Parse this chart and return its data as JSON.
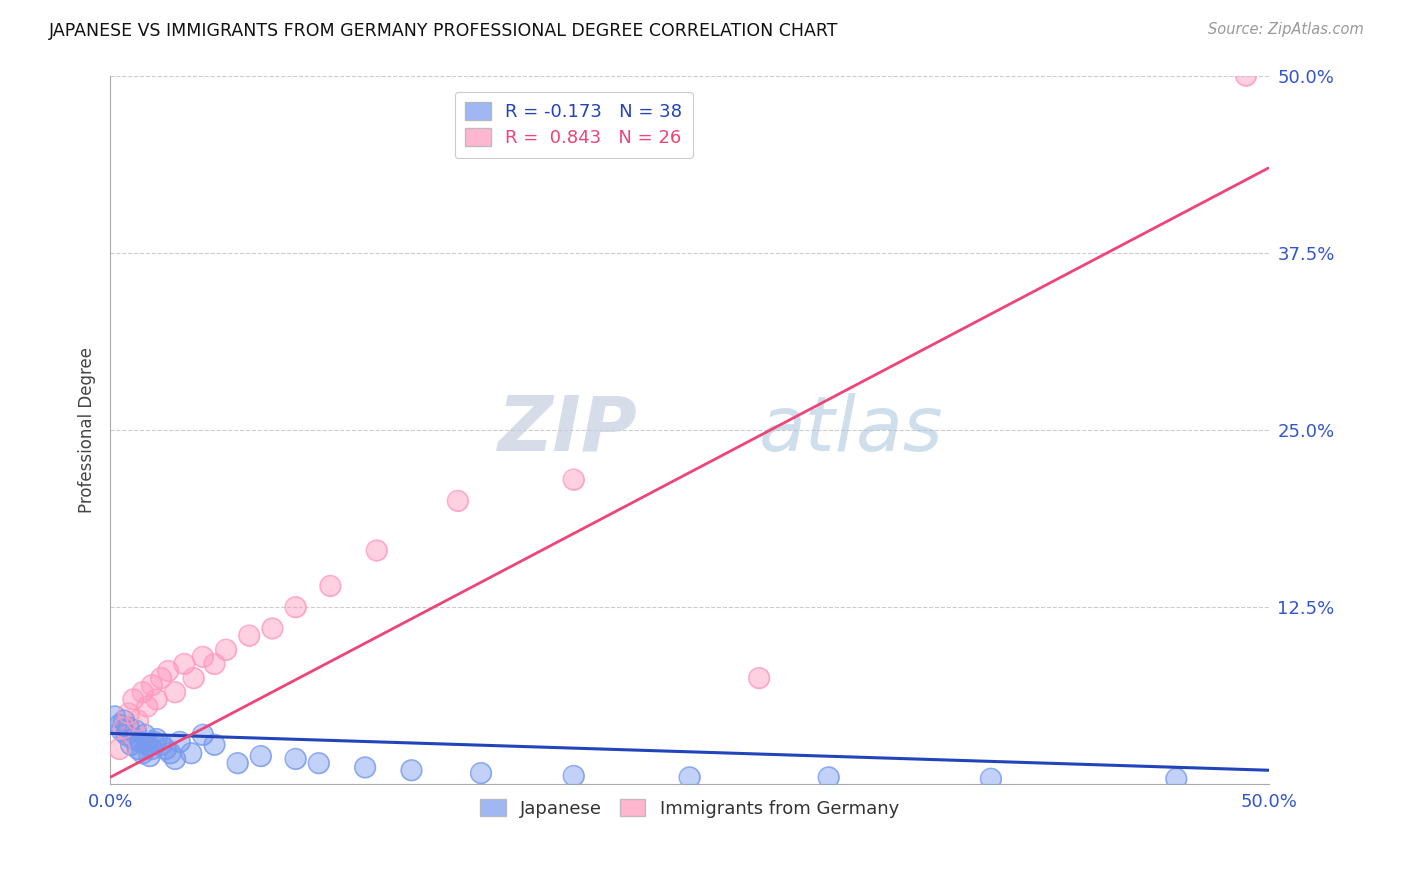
{
  "title": "JAPANESE VS IMMIGRANTS FROM GERMANY PROFESSIONAL DEGREE CORRELATION CHART",
  "source": "Source: ZipAtlas.com",
  "ylabel": "Professional Degree",
  "xlim": [
    0.0,
    0.5
  ],
  "ylim": [
    0.0,
    0.5
  ],
  "blue_color": "#7799ee",
  "pink_color": "#ff99bb",
  "blue_line_color": "#2244bb",
  "pink_line_color": "#ee4477",
  "watermark_zip": "ZIP",
  "watermark_atlas": "atlas",
  "japanese_x": [
    0.002,
    0.004,
    0.005,
    0.006,
    0.007,
    0.008,
    0.009,
    0.01,
    0.011,
    0.012,
    0.013,
    0.014,
    0.015,
    0.016,
    0.017,
    0.018,
    0.019,
    0.02,
    0.022,
    0.024,
    0.026,
    0.028,
    0.03,
    0.035,
    0.04,
    0.045,
    0.055,
    0.065,
    0.08,
    0.09,
    0.11,
    0.13,
    0.16,
    0.2,
    0.25,
    0.31,
    0.38,
    0.46
  ],
  "japanese_y": [
    0.048,
    0.042,
    0.038,
    0.045,
    0.035,
    0.04,
    0.028,
    0.032,
    0.038,
    0.025,
    0.03,
    0.022,
    0.035,
    0.028,
    0.02,
    0.025,
    0.03,
    0.032,
    0.028,
    0.025,
    0.022,
    0.018,
    0.03,
    0.022,
    0.035,
    0.028,
    0.015,
    0.02,
    0.018,
    0.015,
    0.012,
    0.01,
    0.008,
    0.006,
    0.005,
    0.005,
    0.004,
    0.004
  ],
  "german_x": [
    0.004,
    0.006,
    0.008,
    0.01,
    0.012,
    0.014,
    0.016,
    0.018,
    0.02,
    0.022,
    0.025,
    0.028,
    0.032,
    0.036,
    0.04,
    0.045,
    0.05,
    0.06,
    0.07,
    0.08,
    0.095,
    0.115,
    0.15,
    0.2,
    0.28,
    0.49
  ],
  "german_y": [
    0.025,
    0.04,
    0.05,
    0.06,
    0.045,
    0.065,
    0.055,
    0.07,
    0.06,
    0.075,
    0.08,
    0.065,
    0.085,
    0.075,
    0.09,
    0.085,
    0.095,
    0.105,
    0.11,
    0.125,
    0.14,
    0.165,
    0.2,
    0.215,
    0.075,
    0.5
  ],
  "jp_line_x0": 0.0,
  "jp_line_y0": 0.036,
  "jp_line_x1": 0.5,
  "jp_line_y1": 0.01,
  "de_line_x0": 0.0,
  "de_line_y0": 0.005,
  "de_line_x1": 0.5,
  "de_line_y1": 0.435
}
